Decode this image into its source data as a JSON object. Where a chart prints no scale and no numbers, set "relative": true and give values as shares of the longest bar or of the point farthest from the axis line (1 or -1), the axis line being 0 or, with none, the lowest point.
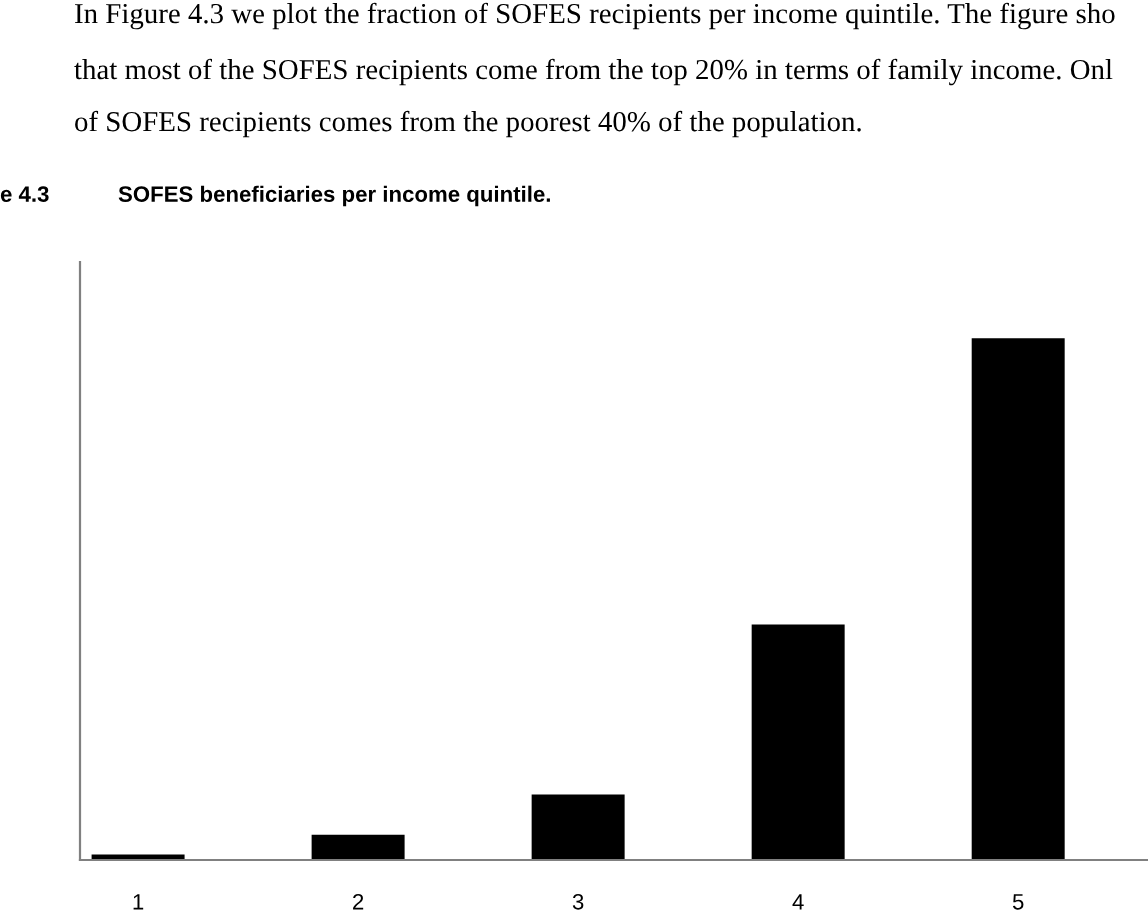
{
  "chart_data": {
    "type": "bar",
    "title": "SOFES beneficiaries per income quintile.",
    "categories": [
      "1",
      "2",
      "3",
      "4",
      "5"
    ],
    "values": [
      0.008,
      0.046,
      0.123,
      0.45,
      1
    ],
    "color": "#000000",
    "relative": true,
    "grid": false,
    "legend": false,
    "annotations": [
      "In Figure 4.3 we plot the fraction of SOFES recipients per income quintile. The figure sho",
      "that most of the SOFES recipients come from the top 20% in terms of family income. Onl",
      "of SOFES recipients comes from the poorest 40% of the population.",
      "e 4.3"
    ]
  }
}
